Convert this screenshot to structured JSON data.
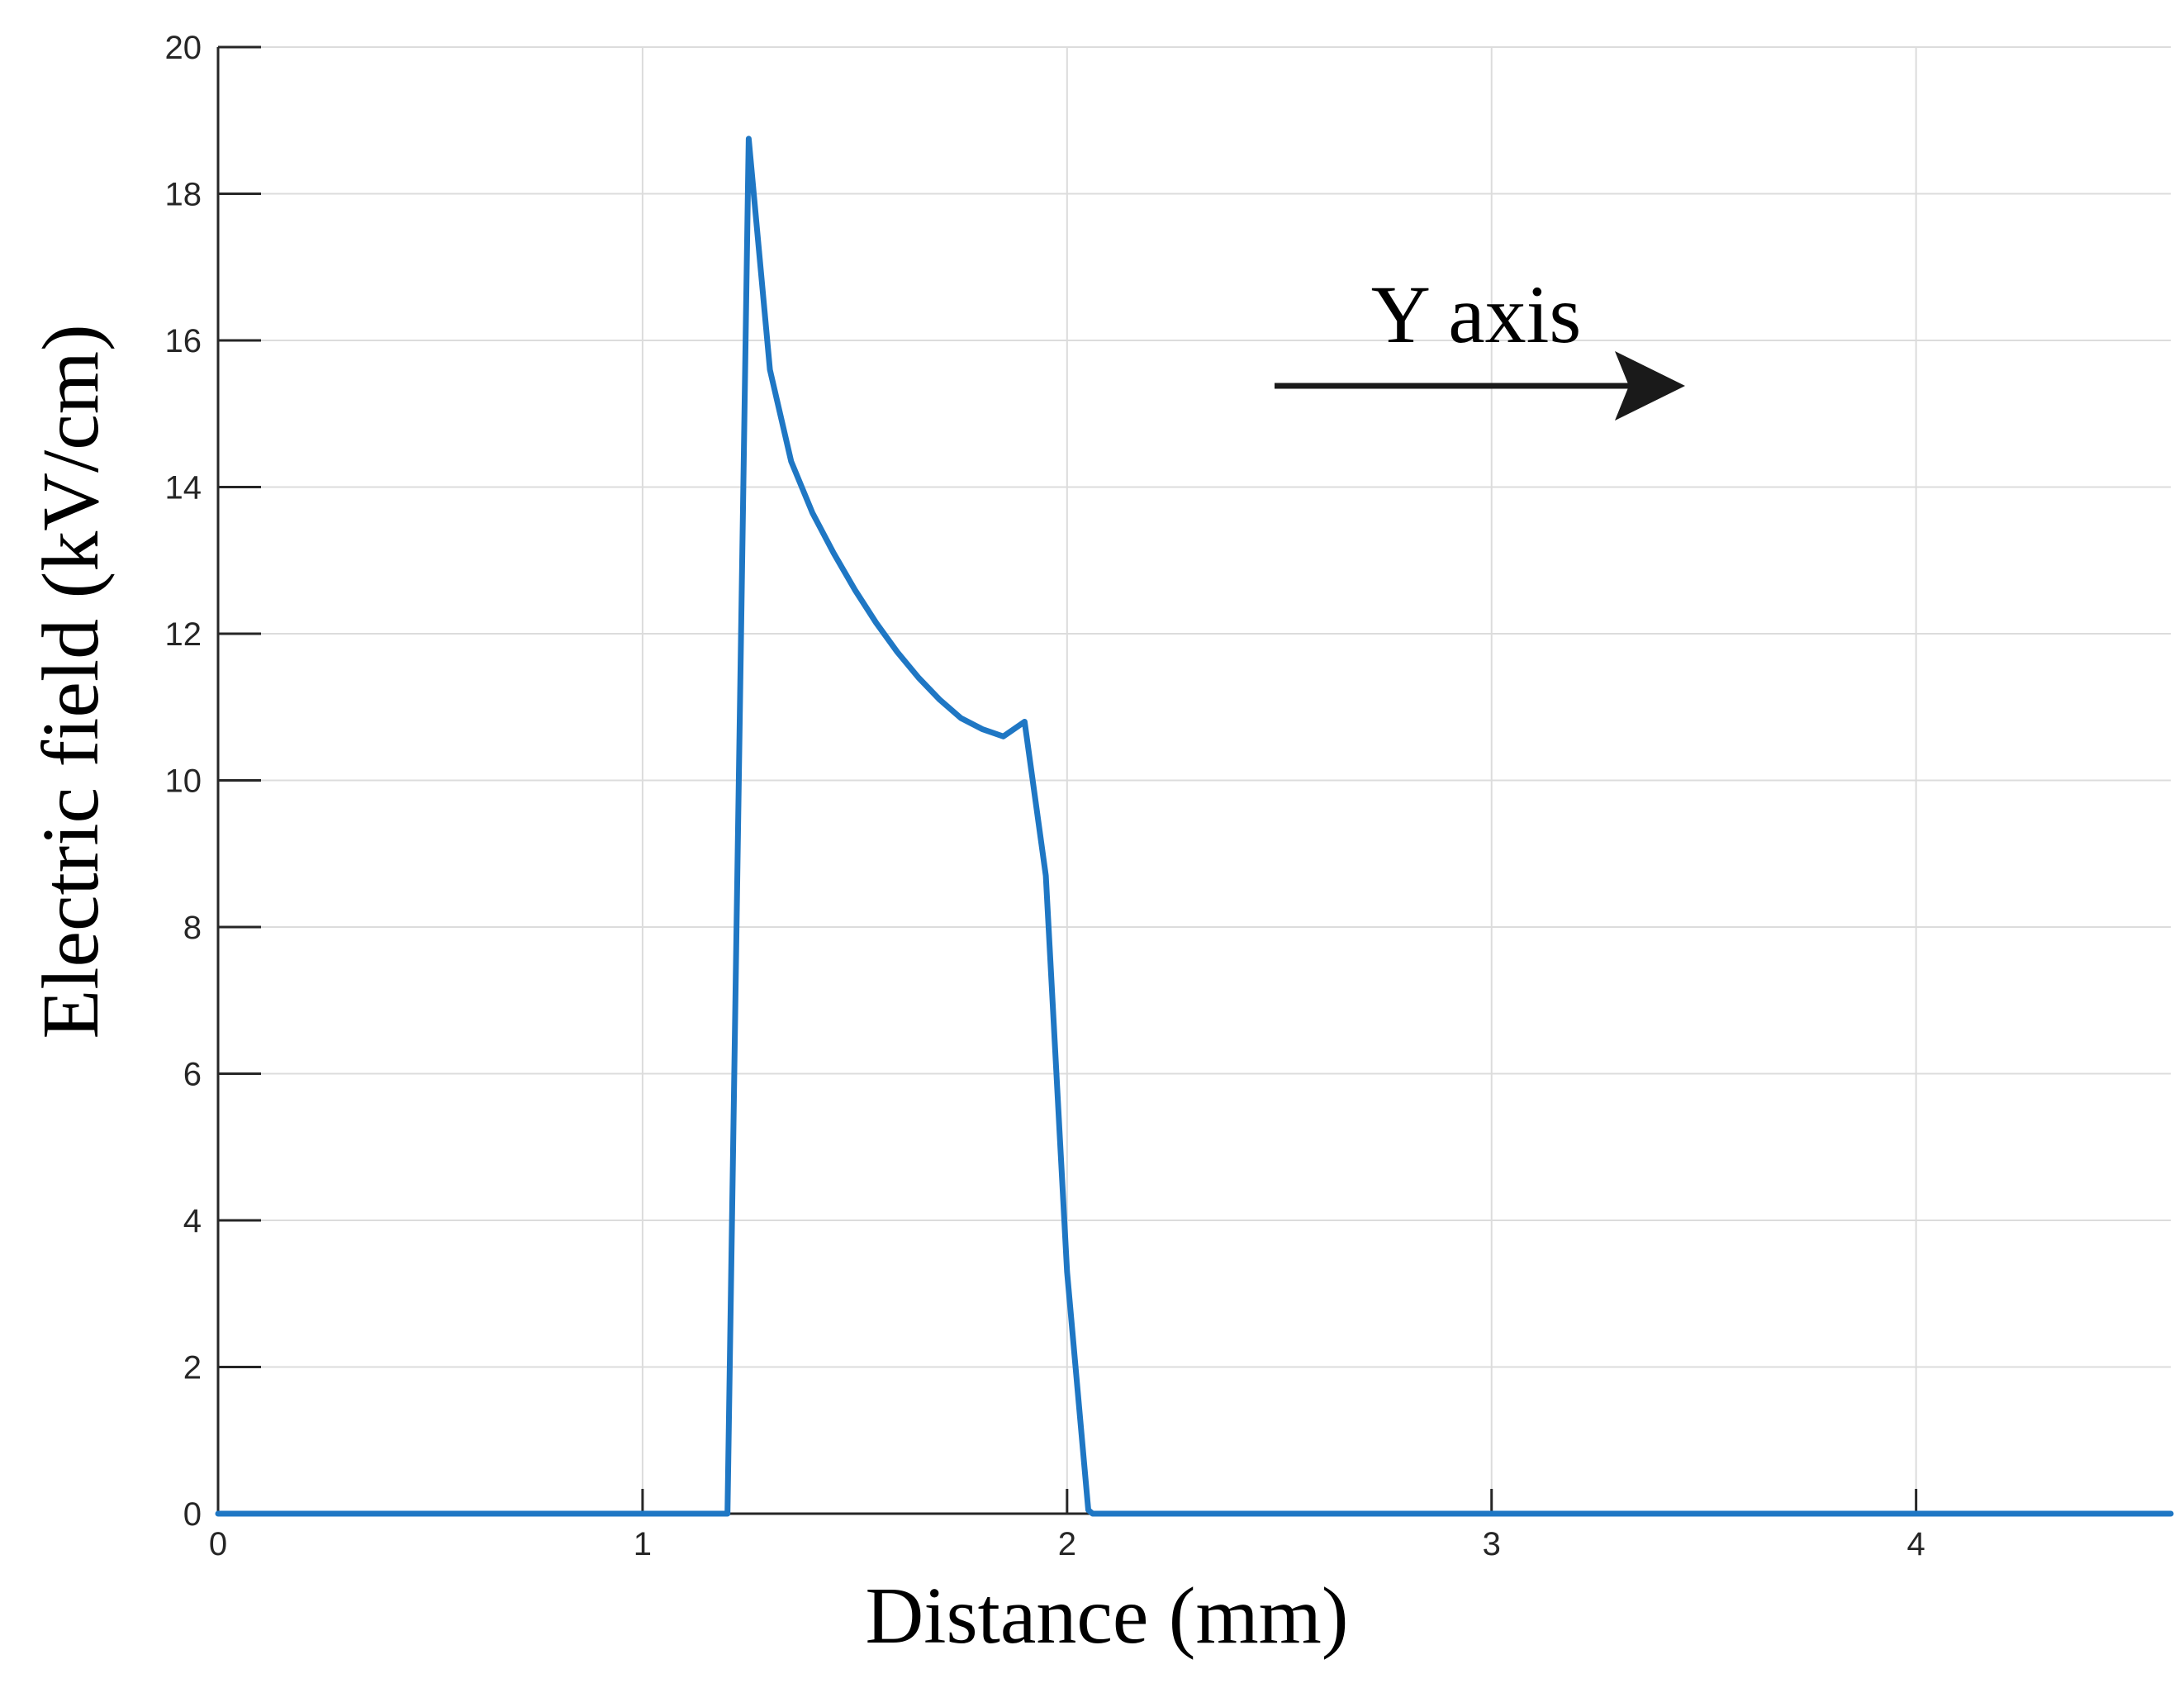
{
  "colors": {
    "series": "#1f77c4",
    "grid": "#dcdcdc",
    "axis": "#262626",
    "annotation": "#1a1a1a"
  },
  "chart_data": {
    "type": "line",
    "title": "",
    "xlabel": "Distance (mm)",
    "ylabel": "Electric field (kV/cm)",
    "xlim": [
      0,
      4.6
    ],
    "ylim": [
      0,
      20
    ],
    "xticks": [
      0,
      1,
      2,
      3,
      4
    ],
    "yticks": [
      0,
      2,
      4,
      6,
      8,
      10,
      12,
      14,
      16,
      18,
      20
    ],
    "xtick_labels": [
      "0",
      "1",
      "2",
      "3",
      "4"
    ],
    "ytick_labels": [
      "0",
      "2",
      "4",
      "6",
      "8",
      "10",
      "12",
      "14",
      "16",
      "18",
      "20"
    ],
    "grid": true,
    "legend": "none",
    "annotation": {
      "text": "Y axis",
      "shape": "right-arrow"
    },
    "series": [
      {
        "x": [
          0,
          1.19,
          1.2,
          1.25,
          1.3,
          1.35,
          1.4,
          1.45,
          1.5,
          1.55,
          1.6,
          1.65,
          1.7,
          1.75,
          1.8,
          1.85,
          1.9,
          1.95,
          2.0,
          2.05,
          2.06,
          4.6
        ],
        "y": [
          0,
          0,
          0,
          18.75,
          15.6,
          14.35,
          13.65,
          13.1,
          12.6,
          12.15,
          11.75,
          11.4,
          11.1,
          10.85,
          10.7,
          10.6,
          10.8,
          8.7,
          3.3,
          0.05,
          0,
          0
        ]
      }
    ]
  }
}
